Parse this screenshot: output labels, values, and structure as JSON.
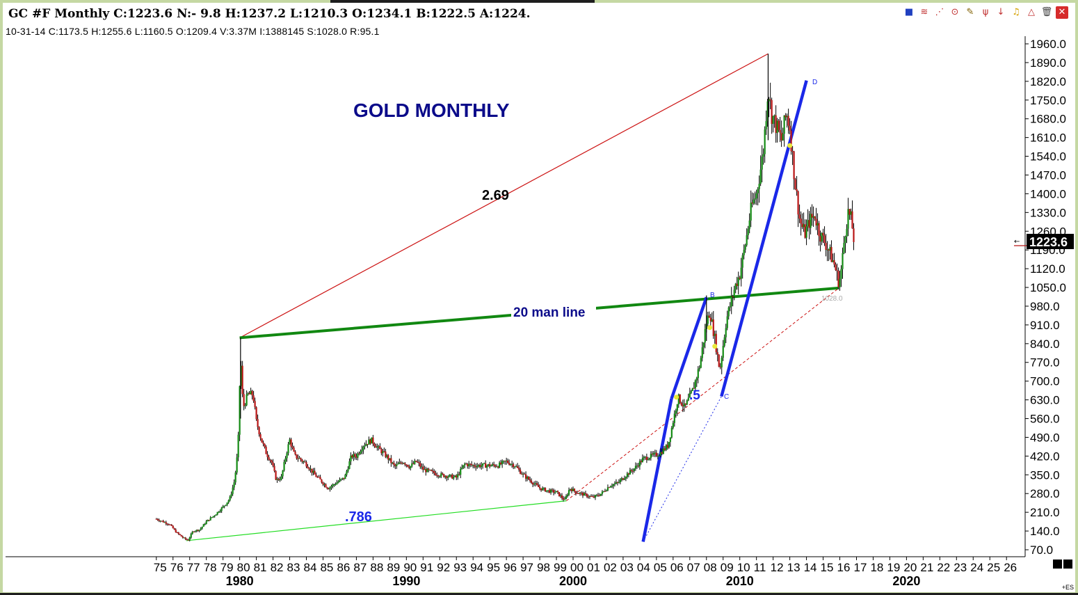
{
  "header": {
    "title": "GC #F Monthly C:1223.6 N:- 9.8 H:1237.2 L:1210.3 O:1234.1 B:1222.5 A:1224.",
    "subinfo": "10-31-14  C:1173.5  H:1255.6  L:1160.5  O:1209.4  V:3.37M  I:1388145  S:1028.0  R:95.1"
  },
  "toolbar": {
    "icons": [
      "chart-style-icon",
      "fib-arc-icon",
      "fan-icon",
      "cycle-icon",
      "pencil-icon",
      "andrews-pitchfork-icon",
      "arrow-down-icon",
      "bell-icon",
      "triangle-icon",
      "trash-icon",
      "close-icon"
    ]
  },
  "colors": {
    "up_bar": "#138a13",
    "down_bar": "#b81414",
    "green_line": "#118811",
    "bright_green": "#22dd22",
    "red_line": "#cc1111",
    "blue_line": "#1a28e8",
    "title_blue": "#0b0b8a",
    "price_box": "#000000"
  },
  "annotations": {
    "chart_title": "GOLD MONTHLY",
    "ratio_upper": "2.69",
    "ratio_lower": ".786",
    "ratio_mid": ".5",
    "line_label": "20 man line",
    "point_b": "B",
    "point_c": "C",
    "point_d": "D",
    "level_label": "1028.0"
  },
  "price_box": {
    "value": "1223.6"
  },
  "chart_data": {
    "type": "candlestick",
    "title": "GOLD MONTHLY",
    "xlabel": "",
    "ylabel": "",
    "ylim": [
      70,
      1960
    ],
    "xlim": [
      1974.8,
      2026.2
    ],
    "y_ticks": [
      "1960.0",
      "1890.0",
      "1820.0",
      "1750.0",
      "1680.0",
      "1610.0",
      "1540.0",
      "1470.0",
      "1400.0",
      "1330.0",
      "1260.0",
      "1190.0",
      "1120.0",
      "1050.0",
      "980.0",
      "910.0",
      "840.0",
      "770.0",
      "700.0",
      "630.0",
      "560.0",
      "490.0",
      "420.0",
      "350.0",
      "280.0",
      "210.0",
      "140.0",
      "70.0"
    ],
    "y_tick_values": [
      1960,
      1890,
      1820,
      1750,
      1680,
      1610,
      1540,
      1470,
      1400,
      1330,
      1260,
      1190,
      1120,
      1050,
      980,
      910,
      840,
      770,
      700,
      630,
      560,
      490,
      420,
      350,
      280,
      210,
      140,
      70
    ],
    "x_ticks": [
      "75",
      "76",
      "77",
      "78",
      "79",
      "80",
      "81",
      "82",
      "83",
      "84",
      "85",
      "86",
      "87",
      "88",
      "89",
      "90",
      "91",
      "92",
      "93",
      "94",
      "95",
      "96",
      "97",
      "98",
      "99",
      "00",
      "01",
      "02",
      "03",
      "04",
      "05",
      "06",
      "07",
      "08",
      "09",
      "10",
      "11",
      "12",
      "13",
      "14",
      "15",
      "16",
      "17",
      "18",
      "19",
      "20",
      "21",
      "22",
      "23",
      "24",
      "25",
      "26"
    ],
    "decade_labels": [
      {
        "year": 1980,
        "text": "1980"
      },
      {
        "year": 1990,
        "text": "1990"
      },
      {
        "year": 2000,
        "text": "2000"
      },
      {
        "year": 2010,
        "text": "2010"
      },
      {
        "year": 2020,
        "text": "2020"
      }
    ],
    "price_path": [
      [
        1975.0,
        185
      ],
      [
        1975.4,
        175
      ],
      [
        1975.8,
        165
      ],
      [
        1976.2,
        135
      ],
      [
        1976.6,
        115
      ],
      [
        1976.9,
        105
      ],
      [
        1977.2,
        140
      ],
      [
        1977.6,
        145
      ],
      [
        1978.0,
        175
      ],
      [
        1978.5,
        200
      ],
      [
        1979.0,
        230
      ],
      [
        1979.4,
        260
      ],
      [
        1979.7,
        330
      ],
      [
        1979.9,
        450
      ],
      [
        1980.05,
        800
      ],
      [
        1980.2,
        600
      ],
      [
        1980.5,
        650
      ],
      [
        1980.8,
        650
      ],
      [
        1981.0,
        550
      ],
      [
        1981.3,
        480
      ],
      [
        1981.6,
        430
      ],
      [
        1981.9,
        400
      ],
      [
        1982.2,
        330
      ],
      [
        1982.5,
        340
      ],
      [
        1982.8,
        430
      ],
      [
        1983.0,
        480
      ],
      [
        1983.3,
        420
      ],
      [
        1983.6,
        410
      ],
      [
        1984.0,
        390
      ],
      [
        1984.5,
        350
      ],
      [
        1985.0,
        320
      ],
      [
        1985.3,
        300
      ],
      [
        1985.8,
        320
      ],
      [
        1986.3,
        340
      ],
      [
        1986.7,
        420
      ],
      [
        1987.0,
        420
      ],
      [
        1987.4,
        460
      ],
      [
        1987.9,
        480
      ],
      [
        1988.3,
        450
      ],
      [
        1988.8,
        420
      ],
      [
        1989.3,
        380
      ],
      [
        1989.8,
        400
      ],
      [
        1990.2,
        380
      ],
      [
        1990.6,
        400
      ],
      [
        1991.0,
        370
      ],
      [
        1991.5,
        360
      ],
      [
        1992.0,
        350
      ],
      [
        1992.5,
        345
      ],
      [
        1993.0,
        340
      ],
      [
        1993.5,
        390
      ],
      [
        1994.0,
        385
      ],
      [
        1994.5,
        385
      ],
      [
        1995.0,
        385
      ],
      [
        1995.5,
        385
      ],
      [
        1996.0,
        400
      ],
      [
        1996.5,
        385
      ],
      [
        1997.0,
        350
      ],
      [
        1997.5,
        325
      ],
      [
        1998.0,
        300
      ],
      [
        1998.5,
        290
      ],
      [
        1999.0,
        285
      ],
      [
        1999.5,
        255
      ],
      [
        1999.8,
        300
      ],
      [
        2000.2,
        285
      ],
      [
        2000.7,
        275
      ],
      [
        2001.2,
        265
      ],
      [
        2001.7,
        280
      ],
      [
        2002.2,
        310
      ],
      [
        2002.7,
        320
      ],
      [
        2003.2,
        350
      ],
      [
        2003.7,
        375
      ],
      [
        2004.2,
        410
      ],
      [
        2004.7,
        420
      ],
      [
        2005.2,
        430
      ],
      [
        2005.7,
        460
      ],
      [
        2006.0,
        550
      ],
      [
        2006.3,
        640
      ],
      [
        2006.7,
        600
      ],
      [
        2007.2,
        670
      ],
      [
        2007.6,
        760
      ],
      [
        2008.0,
        920
      ],
      [
        2008.2,
        960
      ],
      [
        2008.5,
        860
      ],
      [
        2008.8,
        740
      ],
      [
        2009.2,
        930
      ],
      [
        2009.7,
        1050
      ],
      [
        2010.0,
        1100
      ],
      [
        2010.3,
        1200
      ],
      [
        2010.7,
        1350
      ],
      [
        2011.0,
        1400
      ],
      [
        2011.4,
        1550
      ],
      [
        2011.7,
        1800
      ],
      [
        2011.9,
        1700
      ],
      [
        2012.2,
        1650
      ],
      [
        2012.5,
        1600
      ],
      [
        2012.8,
        1700
      ],
      [
        2013.0,
        1650
      ],
      [
        2013.3,
        1450
      ],
      [
        2013.6,
        1300
      ],
      [
        2013.9,
        1250
      ],
      [
        2014.2,
        1300
      ],
      [
        2014.5,
        1320
      ],
      [
        2014.8,
        1250
      ],
      [
        2015.1,
        1220
      ],
      [
        2015.4,
        1180
      ],
      [
        2015.7,
        1130
      ],
      [
        2015.95,
        1065
      ],
      [
        2016.1,
        1120
      ],
      [
        2016.3,
        1250
      ],
      [
        2016.5,
        1330
      ],
      [
        2016.7,
        1300
      ],
      [
        2016.85,
        1223.6
      ]
    ],
    "trendlines": [
      {
        "name": "red-solid-line",
        "style": "solid",
        "points": [
          [
            1980.0,
            862
          ],
          [
            2011.7,
            1923
          ]
        ]
      },
      {
        "name": "green-20-man-line",
        "style": "solid-thick",
        "points": [
          [
            1980.0,
            862
          ],
          [
            2015.95,
            1048
          ]
        ]
      },
      {
        "name": "bright-green-line",
        "style": "solid",
        "points": [
          [
            1976.8,
            104
          ],
          [
            1999.6,
            253
          ]
        ]
      },
      {
        "name": "red-dashed-line",
        "style": "dashed",
        "points": [
          [
            1999.6,
            253
          ],
          [
            2015.95,
            1048
          ]
        ]
      },
      {
        "name": "blue-dashed-line",
        "style": "dotted",
        "points": [
          [
            2004.2,
            100
          ],
          [
            2008.9,
            643
          ]
        ]
      },
      {
        "name": "blue-line-1",
        "style": "solid-thick",
        "points": [
          [
            2004.2,
            100
          ],
          [
            2005.9,
            634
          ]
        ]
      },
      {
        "name": "blue-line-2",
        "style": "solid-thick",
        "points": [
          [
            2005.9,
            634
          ],
          [
            2008.0,
            1013
          ]
        ]
      },
      {
        "name": "blue-line-3",
        "style": "solid-thick",
        "points": [
          [
            2008.9,
            643
          ],
          [
            2014.0,
            1823
          ]
        ]
      }
    ]
  }
}
